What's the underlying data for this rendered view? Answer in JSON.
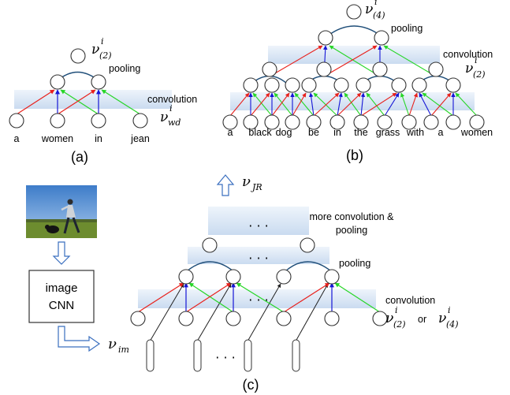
{
  "panels": {
    "a": {
      "caption": "(a)",
      "words": [
        "a",
        "women",
        "in",
        "jean"
      ],
      "pooling_label": "pooling",
      "convolution_label": "convolution",
      "top_symbol": "ν",
      "top_sup": "i",
      "top_sub": "(2)",
      "input_symbol": "ν",
      "input_sup": "i",
      "input_sub": "wd"
    },
    "b": {
      "caption": "(b)",
      "words": [
        "a",
        "black",
        "dog",
        "be",
        "in",
        "the",
        "grass",
        "with",
        "a",
        "women"
      ],
      "pooling_label": "pooling",
      "convolution_label": "convolution",
      "top_symbol": "ν",
      "top_sup": "i",
      "top_sub": "(4)",
      "mid_symbol": "ν",
      "mid_sup": "i",
      "mid_sub": "(2)"
    },
    "c": {
      "caption": "(c)",
      "box_line1": "image",
      "box_line2": "CNN",
      "image_feature_symbol": "ν",
      "image_feature_sub": "im",
      "output_symbol": "ν",
      "output_sub": "JR",
      "more_label_line1": "more convolution &",
      "more_label_line2": "pooling",
      "pooling_label": "pooling",
      "convolution_label": "convolution",
      "input_symbol_a": "ν",
      "input_sup_a": "i",
      "input_sub_a": "(2)",
      "or_text": "or",
      "input_symbol_b": "ν",
      "input_sup_b": "i",
      "input_sub_b": "(4)",
      "ellipsis": "· · ·"
    }
  },
  "colors": {
    "red_arrow": "#e8211c",
    "green_arrow": "#27d627",
    "blue_arrow": "#1515d6",
    "band": "#cfe0f3",
    "pool_arc": "#1f4e79",
    "sky": "#4f8fd6",
    "grass": "#6d8c2f"
  }
}
